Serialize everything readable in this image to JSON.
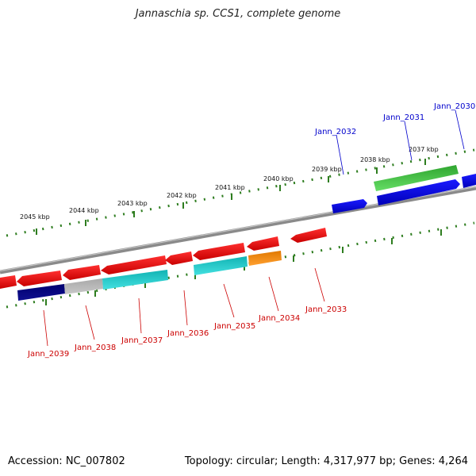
{
  "header": {
    "title": "Jannaschia sp. CCS1, complete genome"
  },
  "footer": {
    "accession": "Accession: NC_007802",
    "summary": "Topology: circular; Length: 4,317,977 bp; Genes: 4,264"
  },
  "colors": {
    "backbone": "#8c8c8c",
    "tick": "#2e7d1f",
    "forward_label": "#0000cc",
    "reverse_label": "#cc0000"
  },
  "kbp_labels": [
    "2045 kbp",
    "2044 kbp",
    "2043 kbp",
    "2042 kbp",
    "2041 kbp",
    "2040 kbp",
    "2039 kbp",
    "2038 kbp",
    "2037 kbp"
  ],
  "genes_forward": [
    {
      "name": "Jann_2032",
      "color": "#0000ee"
    },
    {
      "name": "Jann_2031",
      "color": "#0000ee"
    },
    {
      "name": "Jann_2030",
      "color": "#0000ee"
    }
  ],
  "genes_reverse": [
    {
      "name": "Jann_2033"
    },
    {
      "name": "Jann_2034"
    },
    {
      "name": "Jann_2035"
    },
    {
      "name": "Jann_2036"
    },
    {
      "name": "Jann_2037"
    },
    {
      "name": "Jann_2038"
    },
    {
      "name": "Jann_2039"
    }
  ]
}
